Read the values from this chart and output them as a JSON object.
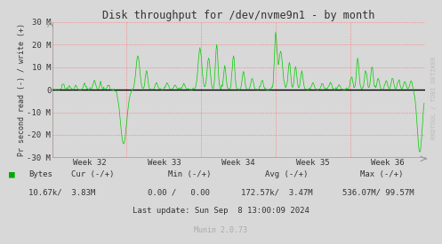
{
  "title": "Disk throughput for /dev/nvme9n1 - by month",
  "ylabel": "Pr second read (-) / write (+)",
  "xlabel_ticks": [
    "Week 32",
    "Week 33",
    "Week 34",
    "Week 35",
    "Week 36"
  ],
  "ylim": [
    -30000000,
    30000000
  ],
  "yticks": [
    -30000000,
    -20000000,
    -10000000,
    0,
    10000000,
    20000000,
    30000000
  ],
  "ytick_labels": [
    "-30 M",
    "-20 M",
    "-10 M",
    "0",
    "10 M",
    "20 M",
    "30 M"
  ],
  "bg_color": "#d8d8d8",
  "plot_bg_color": "#d8d8d8",
  "grid_color": "#ff8080",
  "line_color": "#00cc00",
  "zero_line_color": "#000000",
  "legend_label": "Bytes",
  "legend_color": "#00aa00",
  "munin_version": "Munin 2.0.73",
  "watermark": "RRDTOOL / TOBI OETIKER",
  "n_points": 600
}
